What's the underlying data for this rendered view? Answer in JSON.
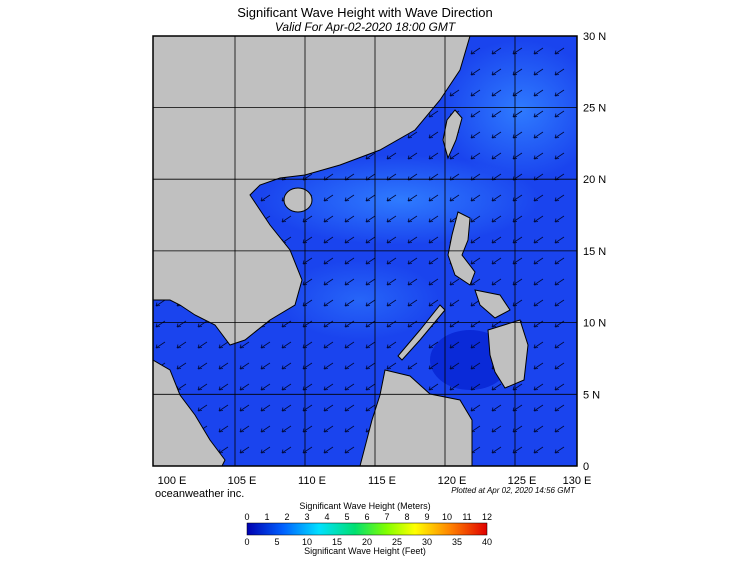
{
  "header": {
    "title": "Significant Wave Height with Wave Direction",
    "valid": "Valid For Apr-02-2020 18:00 GMT"
  },
  "map": {
    "lon_labels": [
      "100 E",
      "105 E",
      "110 E",
      "115 E",
      "120 E",
      "125 E",
      "130 E"
    ],
    "lat_labels": [
      "0",
      "5 N",
      "10 N",
      "15 N",
      "20 N",
      "25 N",
      "30 N"
    ]
  },
  "footer": {
    "credit": "oceanweather inc.",
    "plotted": "Plotted at Apr 02, 2020 14:56 GMT"
  },
  "legend": {
    "meters_title": "Significant Wave Height (Meters)",
    "meters_ticks": [
      "0",
      "1",
      "2",
      "3",
      "4",
      "5",
      "6",
      "7",
      "8",
      "9",
      "10",
      "11",
      "12"
    ],
    "feet_title": "Significant Wave Height (Feet)",
    "feet_ticks": [
      "0",
      "5",
      "10",
      "15",
      "20",
      "25",
      "30",
      "35",
      "40"
    ]
  }
}
